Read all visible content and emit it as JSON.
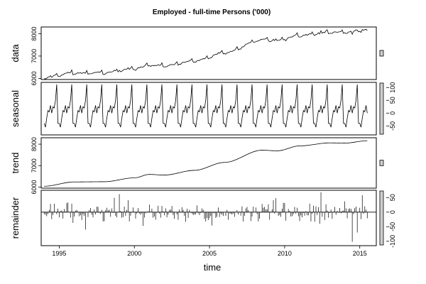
{
  "chart_data": {
    "type": "line",
    "title": "Employed - full-time Persons ('000)",
    "xlabel": "time",
    "x_ticks": [
      "1995",
      "2000",
      "2005",
      "2010",
      "2015"
    ],
    "x_range": [
      1993.8,
      2016.1
    ],
    "start_year": 1994.0,
    "end_year": 2015.5,
    "months_per_year": 12,
    "panels": [
      {
        "name": "data",
        "ylabel": "data",
        "ylim": [
          5950,
          8300
        ],
        "yticks": [
          6000,
          7000,
          8000
        ],
        "tick_side": "left",
        "style": "line",
        "description": "observed series"
      },
      {
        "name": "seasonal",
        "ylabel": "seasonal",
        "ylim": [
          -85,
          120
        ],
        "yticks": [
          -50,
          0,
          50,
          100
        ],
        "tick_side": "right",
        "style": "line",
        "pattern": [
          -40,
          -55,
          -20,
          10,
          5,
          30,
          0,
          25,
          20,
          50,
          112,
          -40
        ]
      },
      {
        "name": "trend",
        "ylabel": "trend",
        "ylim": [
          5950,
          8300
        ],
        "yticks": [
          6000,
          7000,
          8000
        ],
        "tick_side": "left",
        "style": "line",
        "knots": [
          [
            1994.0,
            6040
          ],
          [
            1996.0,
            6240
          ],
          [
            1998.0,
            6250
          ],
          [
            2000.0,
            6430
          ],
          [
            2001.0,
            6590
          ],
          [
            2002.0,
            6560
          ],
          [
            2004.0,
            6780
          ],
          [
            2006.0,
            7150
          ],
          [
            2008.5,
            7720
          ],
          [
            2009.5,
            7690
          ],
          [
            2011.0,
            7920
          ],
          [
            2013.0,
            8060
          ],
          [
            2014.0,
            8050
          ],
          [
            2015.5,
            8160
          ]
        ]
      },
      {
        "name": "remainder",
        "ylabel": "remainder",
        "ylim": [
          -115,
          75
        ],
        "yticks": [
          -100,
          -50,
          0,
          50
        ],
        "tick_side": "right",
        "style": "spikes"
      }
    ]
  }
}
